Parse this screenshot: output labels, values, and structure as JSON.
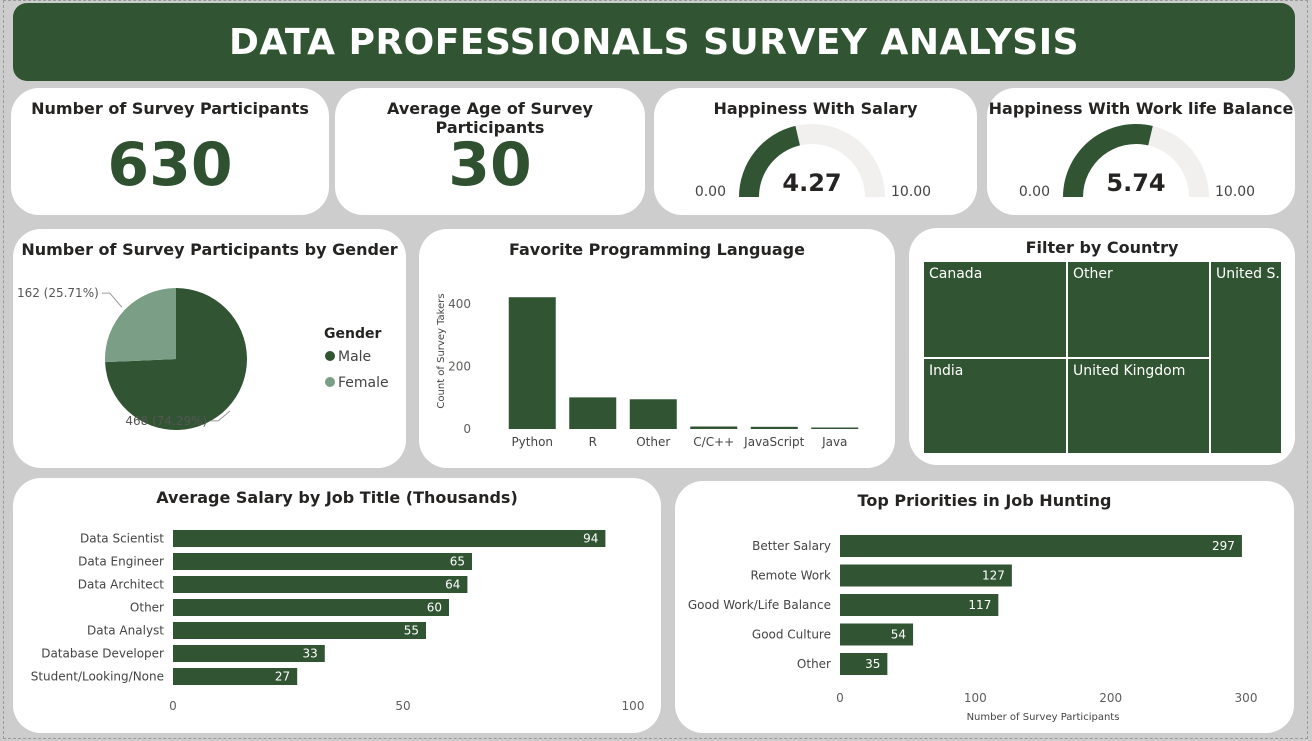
{
  "header": {
    "title": "DATA PROFESSIONALS SURVEY ANALYSIS"
  },
  "kpis": [
    {
      "label": "Number of Survey Participants",
      "value": "630"
    },
    {
      "label": "Average Age of Survey Participants",
      "value": "30"
    }
  ],
  "gauges": [
    {
      "label": "Happiness With Salary",
      "value": 4.27,
      "value_text": "4.27",
      "min_text": "0.00",
      "max_text": "10.00",
      "min": 0,
      "max": 10
    },
    {
      "label": "Happiness With Work life Balance",
      "value": 5.74,
      "value_text": "5.74",
      "min_text": "0.00",
      "max_text": "10.00",
      "min": 0,
      "max": 10
    }
  ],
  "colors": {
    "primary": "#315433",
    "secondary": "#7a9f86",
    "gauge_track": "#f1f0ef",
    "background": "#cdcdcd"
  },
  "chart_data": [
    {
      "type": "pie",
      "title": "Number of Survey Participants by Gender",
      "legend_title": "Gender",
      "legend_position": "right",
      "slices": [
        {
          "name": "Male",
          "value": 468,
          "label": "468 (74.29%)",
          "color": "#315433"
        },
        {
          "name": "Female",
          "value": 162,
          "label": "162 (25.71%)",
          "color": "#7a9f86"
        }
      ]
    },
    {
      "type": "bar",
      "title": "Favorite Programming Language",
      "categories": [
        "Python",
        "R",
        "Other",
        "C/C++",
        "JavaScript",
        "Java"
      ],
      "values": [
        421,
        101,
        95,
        8,
        7,
        3
      ],
      "ylabel": "Count of Survey Takers",
      "ylim": [
        0,
        460
      ],
      "yticks": [
        0,
        200,
        400
      ],
      "grid": false
    },
    {
      "type": "treemap",
      "title": "Filter by Country",
      "items": [
        {
          "name": "Canada"
        },
        {
          "name": "Other"
        },
        {
          "name": "United S..."
        },
        {
          "name": "India"
        },
        {
          "name": "United Kingdom"
        }
      ]
    },
    {
      "type": "bar",
      "orientation": "horizontal",
      "title": "Average Salary by Job Title (Thousands)",
      "categories": [
        "Data Scientist",
        "Data Engineer",
        "Data Architect",
        "Other",
        "Data Analyst",
        "Database Developer",
        "Student/Looking/None"
      ],
      "values": [
        94,
        65,
        64,
        60,
        55,
        33,
        27
      ],
      "xlim": [
        0,
        100
      ],
      "xticks": [
        0,
        50,
        100
      ],
      "data_labels": true
    },
    {
      "type": "bar",
      "orientation": "horizontal",
      "title": "Top Priorities in Job Hunting",
      "categories": [
        "Better Salary",
        "Remote Work",
        "Good Work/Life Balance",
        "Good Culture",
        "Other"
      ],
      "values": [
        297,
        127,
        117,
        54,
        35
      ],
      "xlabel": "Number of Survey Participants",
      "xlim": [
        0,
        300
      ],
      "xticks": [
        0,
        100,
        200,
        300
      ],
      "data_labels": true
    }
  ]
}
